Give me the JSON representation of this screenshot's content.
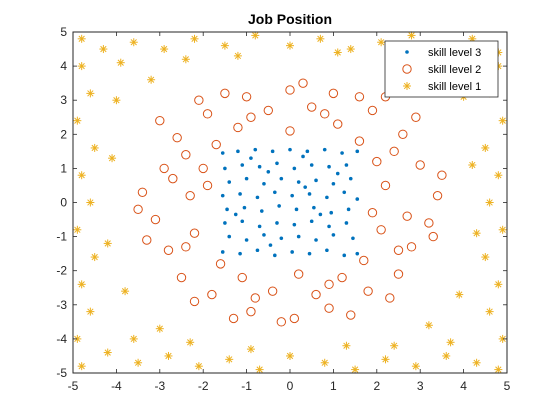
{
  "chart_data": {
    "type": "scatter",
    "title": "Job Position",
    "xlabel": "",
    "ylabel": "",
    "xlim": [
      -5,
      5
    ],
    "ylim": [
      -5,
      5
    ],
    "xticks": [
      -5,
      -4,
      -3,
      -2,
      -1,
      0,
      1,
      2,
      3,
      4,
      5
    ],
    "yticks": [
      -5,
      -4,
      -3,
      -2,
      -1,
      0,
      1,
      2,
      3,
      4,
      5
    ],
    "grid": false,
    "legend_position": "top-right",
    "series": [
      {
        "name": "skill level 3",
        "marker": "dot",
        "color": "#0072BD",
        "region": "square |x|,|y| <= 1.6",
        "points": [
          [
            -1.55,
            1.45
          ],
          [
            -1.2,
            1.5
          ],
          [
            -0.8,
            1.55
          ],
          [
            -0.4,
            1.5
          ],
          [
            0.0,
            1.55
          ],
          [
            0.4,
            1.5
          ],
          [
            0.8,
            1.55
          ],
          [
            1.2,
            1.45
          ],
          [
            1.55,
            1.5
          ],
          [
            -1.5,
            1.0
          ],
          [
            -1.1,
            1.1
          ],
          [
            -0.7,
            1.05
          ],
          [
            -0.3,
            1.15
          ],
          [
            0.1,
            1.0
          ],
          [
            0.5,
            1.1
          ],
          [
            0.9,
            1.05
          ],
          [
            1.3,
            1.1
          ],
          [
            -1.4,
            0.6
          ],
          [
            -1.0,
            0.7
          ],
          [
            -0.6,
            0.55
          ],
          [
            -0.2,
            0.7
          ],
          [
            0.2,
            0.6
          ],
          [
            0.6,
            0.65
          ],
          [
            1.0,
            0.55
          ],
          [
            1.4,
            0.7
          ],
          [
            -1.55,
            0.2
          ],
          [
            -1.15,
            0.25
          ],
          [
            -0.75,
            0.15
          ],
          [
            -0.35,
            0.3
          ],
          [
            0.05,
            0.2
          ],
          [
            0.45,
            0.25
          ],
          [
            0.85,
            0.15
          ],
          [
            1.25,
            0.3
          ],
          [
            1.55,
            0.1
          ],
          [
            -1.45,
            -0.2
          ],
          [
            -1.05,
            -0.15
          ],
          [
            -0.65,
            -0.25
          ],
          [
            -0.25,
            -0.1
          ],
          [
            0.15,
            -0.2
          ],
          [
            0.55,
            -0.15
          ],
          [
            0.95,
            -0.3
          ],
          [
            1.35,
            -0.2
          ],
          [
            -1.5,
            -0.6
          ],
          [
            -1.1,
            -0.55
          ],
          [
            -0.7,
            -0.7
          ],
          [
            -0.3,
            -0.6
          ],
          [
            0.1,
            -0.65
          ],
          [
            0.5,
            -0.55
          ],
          [
            0.9,
            -0.7
          ],
          [
            1.3,
            -0.6
          ],
          [
            -1.4,
            -1.0
          ],
          [
            -1.0,
            -1.1
          ],
          [
            -0.6,
            -0.95
          ],
          [
            -0.2,
            -1.05
          ],
          [
            0.2,
            -1.0
          ],
          [
            0.6,
            -1.1
          ],
          [
            1.0,
            -0.95
          ],
          [
            1.45,
            -1.05
          ],
          [
            -1.55,
            -1.45
          ],
          [
            -1.15,
            -1.5
          ],
          [
            -0.75,
            -1.4
          ],
          [
            -0.35,
            -1.55
          ],
          [
            0.05,
            -1.45
          ],
          [
            0.45,
            -1.5
          ],
          [
            0.85,
            -1.4
          ],
          [
            1.25,
            -1.55
          ],
          [
            1.55,
            -1.5
          ],
          [
            -0.9,
            1.3
          ],
          [
            0.3,
            1.35
          ],
          [
            1.1,
            0.85
          ],
          [
            -1.25,
            -0.35
          ],
          [
            0.7,
            -0.35
          ],
          [
            -0.45,
            -1.25
          ],
          [
            0.35,
            0.45
          ],
          [
            -0.5,
            0.9
          ]
        ]
      },
      {
        "name": "skill level 2",
        "marker": "circle",
        "color": "#D95319",
        "region": "ring r in [1.8, 3.6]",
        "points": [
          [
            -2.9,
            1.0
          ],
          [
            -3.1,
            -0.5
          ],
          [
            -2.6,
            1.9
          ],
          [
            -2.5,
            -2.2
          ],
          [
            -1.9,
            2.6
          ],
          [
            -1.8,
            -2.7
          ],
          [
            -1.0,
            3.1
          ],
          [
            -0.9,
            -3.2
          ],
          [
            0.0,
            3.3
          ],
          [
            0.1,
            -3.4
          ],
          [
            1.0,
            3.2
          ],
          [
            0.9,
            -3.1
          ],
          [
            1.9,
            2.7
          ],
          [
            1.8,
            -2.6
          ],
          [
            2.6,
            2.0
          ],
          [
            2.5,
            -2.1
          ],
          [
            3.0,
            1.1
          ],
          [
            3.2,
            -0.6
          ],
          [
            3.4,
            0.2
          ],
          [
            -3.4,
            0.3
          ],
          [
            -2.3,
            0.2
          ],
          [
            -2.2,
            -0.9
          ],
          [
            -2.0,
            1.0
          ],
          [
            2.2,
            0.5
          ],
          [
            2.1,
            -0.8
          ],
          [
            2.0,
            1.2
          ],
          [
            -1.2,
            2.2
          ],
          [
            0.0,
            2.1
          ],
          [
            1.1,
            2.3
          ],
          [
            -1.1,
            -2.2
          ],
          [
            0.2,
            -2.1
          ],
          [
            1.2,
            -2.2
          ],
          [
            -2.8,
            -1.4
          ],
          [
            2.8,
            -1.3
          ],
          [
            -1.5,
            3.2
          ],
          [
            1.6,
            3.1
          ],
          [
            -3.0,
            2.4
          ],
          [
            2.9,
            2.5
          ],
          [
            -2.2,
            -2.9
          ],
          [
            2.3,
            -2.8
          ],
          [
            -0.5,
            2.7
          ],
          [
            0.5,
            2.8
          ],
          [
            -0.4,
            -2.6
          ],
          [
            0.6,
            -2.7
          ],
          [
            -2.7,
            0.7
          ],
          [
            2.7,
            -0.4
          ],
          [
            -1.7,
            1.7
          ],
          [
            1.6,
            1.8
          ],
          [
            -1.6,
            -1.8
          ],
          [
            1.7,
            -1.7
          ],
          [
            -3.3,
            -1.1
          ],
          [
            3.3,
            -1.0
          ],
          [
            -1.3,
            -3.4
          ],
          [
            1.4,
            -3.3
          ],
          [
            -2.1,
            3.0
          ],
          [
            2.2,
            3.1
          ],
          [
            3.5,
            0.8
          ],
          [
            -3.5,
            -0.2
          ],
          [
            0.3,
            3.5
          ],
          [
            -0.2,
            -3.5
          ],
          [
            -2.4,
            1.4
          ],
          [
            2.4,
            1.5
          ],
          [
            -2.4,
            -1.3
          ],
          [
            2.5,
            -1.4
          ],
          [
            -0.9,
            2.5
          ],
          [
            0.8,
            2.6
          ],
          [
            -0.8,
            -2.8
          ],
          [
            0.9,
            -2.4
          ],
          [
            -1.9,
            0.5
          ],
          [
            1.9,
            -0.3
          ]
        ]
      },
      {
        "name": "skill level 1",
        "marker": "asterisk",
        "color": "#EDB120",
        "region": "r >= 4.2 within [-5,5]",
        "points": [
          [
            -4.8,
            4.8
          ],
          [
            -4.3,
            4.5
          ],
          [
            -3.6,
            4.7
          ],
          [
            -2.9,
            4.5
          ],
          [
            -2.2,
            4.8
          ],
          [
            -1.5,
            4.6
          ],
          [
            -0.8,
            4.9
          ],
          [
            0.0,
            4.6
          ],
          [
            0.7,
            4.8
          ],
          [
            1.4,
            4.5
          ],
          [
            2.1,
            4.7
          ],
          [
            2.8,
            4.9
          ],
          [
            3.5,
            4.6
          ],
          [
            4.2,
            4.8
          ],
          [
            4.8,
            4.4
          ],
          [
            -4.8,
            -4.8
          ],
          [
            -4.2,
            -4.4
          ],
          [
            -3.5,
            -4.7
          ],
          [
            -2.8,
            -4.5
          ],
          [
            -2.1,
            -4.8
          ],
          [
            -1.4,
            -4.6
          ],
          [
            -0.7,
            -4.9
          ],
          [
            0.0,
            -4.5
          ],
          [
            0.8,
            -4.7
          ],
          [
            1.5,
            -4.9
          ],
          [
            2.2,
            -4.6
          ],
          [
            2.9,
            -4.8
          ],
          [
            3.6,
            -4.5
          ],
          [
            4.3,
            -4.7
          ],
          [
            4.8,
            -4.9
          ],
          [
            -4.8,
            4.0
          ],
          [
            -4.6,
            3.2
          ],
          [
            -4.9,
            2.4
          ],
          [
            -4.5,
            1.6
          ],
          [
            -4.8,
            0.8
          ],
          [
            -4.6,
            0.0
          ],
          [
            -4.9,
            -0.8
          ],
          [
            -4.5,
            -1.6
          ],
          [
            -4.8,
            -2.4
          ],
          [
            -4.6,
            -3.2
          ],
          [
            -4.9,
            -4.0
          ],
          [
            4.8,
            4.0
          ],
          [
            4.6,
            3.2
          ],
          [
            4.9,
            2.4
          ],
          [
            4.5,
            1.6
          ],
          [
            4.8,
            0.8
          ],
          [
            4.6,
            0.0
          ],
          [
            4.9,
            -0.8
          ],
          [
            4.5,
            -1.6
          ],
          [
            4.8,
            -2.4
          ],
          [
            4.6,
            -3.2
          ],
          [
            4.9,
            -4.0
          ],
          [
            -4.0,
            3.0
          ],
          [
            -3.2,
            3.6
          ],
          [
            -3.8,
            -2.6
          ],
          [
            -3.0,
            -3.7
          ],
          [
            4.0,
            3.1
          ],
          [
            3.1,
            3.8
          ],
          [
            3.9,
            -2.7
          ],
          [
            3.2,
            -3.6
          ],
          [
            -4.2,
            -1.2
          ],
          [
            4.3,
            -0.9
          ],
          [
            -4.1,
            1.3
          ],
          [
            4.2,
            1.1
          ],
          [
            -2.4,
            4.2
          ],
          [
            2.5,
            4.3
          ],
          [
            -2.3,
            -4.1
          ],
          [
            2.4,
            -4.2
          ],
          [
            -3.6,
            -4.0
          ],
          [
            3.7,
            -4.1
          ],
          [
            -3.9,
            4.1
          ],
          [
            3.8,
            4.2
          ],
          [
            -1.2,
            4.3
          ],
          [
            1.1,
            4.4
          ],
          [
            -0.9,
            -4.3
          ],
          [
            1.3,
            -4.2
          ]
        ]
      }
    ]
  }
}
